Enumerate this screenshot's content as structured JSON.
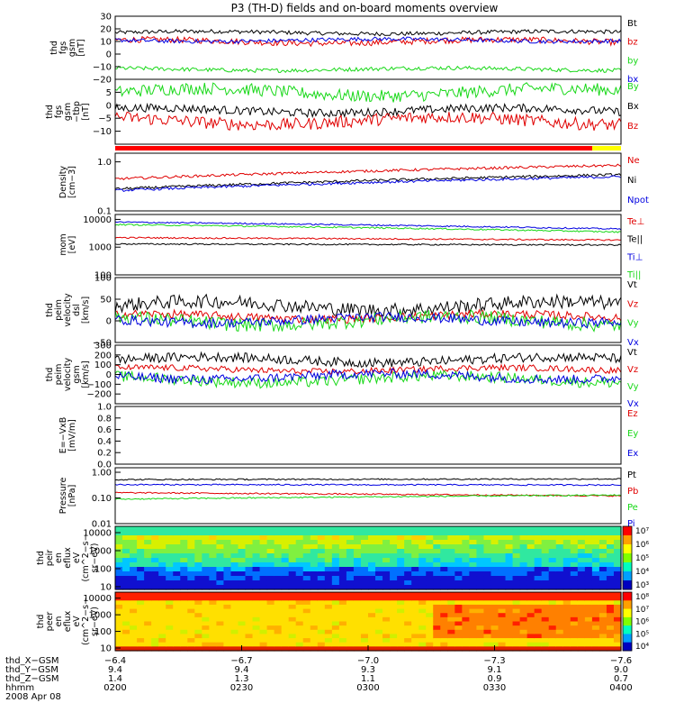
{
  "title": "P3 (TH-D) fields and on-board moments overview",
  "colors": {
    "black": "#000000",
    "red": "#e00000",
    "green": "#18d818",
    "blue": "#0000e0",
    "yellow": "#ffff00",
    "orange_red": "#ff2000"
  },
  "chart_data": [
    {
      "type": "line",
      "id": "fgs_gsm",
      "ylabel": [
        "thd",
        "fgs",
        "gsm",
        "[nT]"
      ],
      "ylim": [
        -20,
        30
      ],
      "yticks": [
        "30",
        "20",
        "10",
        "0",
        "−10",
        "−20"
      ],
      "ytick_values": [
        30,
        20,
        10,
        0,
        -10,
        -20
      ],
      "series": [
        {
          "name": "Bt",
          "color": "#000000",
          "level": 17,
          "amp": 2
        },
        {
          "name": "bz",
          "color": "#e00000",
          "level": 10,
          "amp": 3
        },
        {
          "name": "by",
          "color": "#18d818",
          "level": -12,
          "amp": 2
        },
        {
          "name": "bx",
          "color": "#0000e0",
          "level": 11,
          "amp": 2
        }
      ]
    },
    {
      "type": "line",
      "id": "fgs_gsm_tbp",
      "ylabel": [
        "thd",
        "fgs",
        "gsm",
        "−tbp",
        "[nT]"
      ],
      "ylim": [
        -15,
        10
      ],
      "yticks": [
        "5",
        "0",
        "−5",
        "−10"
      ],
      "ytick_values": [
        5,
        0,
        -5,
        -10
      ],
      "series": [
        {
          "name": "By",
          "color": "#18d818",
          "level": 5,
          "amp": 3
        },
        {
          "name": "Bx",
          "color": "#000000",
          "level": -2,
          "amp": 2
        },
        {
          "name": "Bz",
          "color": "#e00000",
          "level": -6,
          "amp": 3
        }
      ]
    },
    {
      "type": "line",
      "id": "density",
      "log": true,
      "ylabel": [
        "Density",
        "[cm−3]"
      ],
      "ylim": [
        0.1,
        1.5
      ],
      "yticks": [
        "1.0",
        "0.1"
      ],
      "ytick_values": [
        1.0,
        0.1
      ],
      "series": [
        {
          "name": "Ne",
          "color": "#e00000",
          "start": 0.45,
          "end": 0.85
        },
        {
          "name": "Ni",
          "color": "#000000",
          "start": 0.28,
          "end": 0.55
        },
        {
          "name": "Npot",
          "color": "#0000e0",
          "start": 0.26,
          "end": 0.5
        }
      ]
    },
    {
      "type": "line",
      "id": "temperature",
      "log": true,
      "ylabel": [
        "mom",
        "[eV]"
      ],
      "ylim": [
        100,
        15000
      ],
      "yticks": [
        "10000",
        "1000",
        "100"
      ],
      "ytick_values": [
        10000,
        1000,
        100
      ],
      "series": [
        {
          "name": "Te⊥",
          "color": "#e00000",
          "start": 2200,
          "end": 1800
        },
        {
          "name": "Te||",
          "color": "#000000",
          "start": 1300,
          "end": 1200
        },
        {
          "name": "Ti⊥",
          "color": "#0000e0",
          "start": 8000,
          "end": 4500
        },
        {
          "name": "Ti||",
          "color": "#18d818",
          "start": 6500,
          "end": 3500
        }
      ]
    },
    {
      "type": "line",
      "id": "peim_velocity_dsl",
      "ylabel": [
        "thd",
        "peim",
        "velocity",
        "dsl",
        "[km/s]"
      ],
      "ylim": [
        -50,
        100
      ],
      "yticks": [
        "100",
        "50",
        "0",
        "−50"
      ],
      "ytick_values": [
        100,
        50,
        0,
        -50
      ],
      "series": [
        {
          "name": "Vt",
          "color": "#000000",
          "level": 35,
          "amp": 20
        },
        {
          "name": "Vz",
          "color": "#e00000",
          "level": 10,
          "amp": 12
        },
        {
          "name": "Vy",
          "color": "#18d818",
          "level": 0,
          "amp": 20
        },
        {
          "name": "Vx",
          "color": "#0000e0",
          "level": 2,
          "amp": 14
        }
      ]
    },
    {
      "type": "line",
      "id": "peim_velocity_gsm",
      "ylabel": [
        "thd",
        "peim",
        "velocity",
        "gsm",
        "[km/s]"
      ],
      "ylim": [
        -300,
        300
      ],
      "yticks": [
        "300",
        "200",
        "100",
        "0",
        "−100",
        "−200"
      ],
      "ytick_values": [
        300,
        200,
        100,
        0,
        -100,
        -200
      ],
      "series": [
        {
          "name": "Vt",
          "color": "#000000",
          "level": 150,
          "amp": 60
        },
        {
          "name": "Vz",
          "color": "#e00000",
          "level": 50,
          "amp": 40
        },
        {
          "name": "Vy",
          "color": "#18d818",
          "level": -50,
          "amp": 70
        },
        {
          "name": "Vx",
          "color": "#0000e0",
          "level": -20,
          "amp": 60
        }
      ]
    },
    {
      "type": "line",
      "id": "efield",
      "ylabel": [
        "E=−VxB",
        "[mV/m]"
      ],
      "ylim": [
        0.0,
        1.0
      ],
      "yticks": [
        "1.0",
        "0.8",
        "0.6",
        "0.4",
        "0.2",
        "0.0"
      ],
      "ytick_values": [
        1.0,
        0.8,
        0.6,
        0.4,
        0.2,
        0.0
      ],
      "series": [
        {
          "name": "Ez",
          "color": "#e00000"
        },
        {
          "name": "Ey",
          "color": "#18d818"
        },
        {
          "name": "Ex",
          "color": "#0000e0"
        }
      ]
    },
    {
      "type": "line",
      "id": "pressure",
      "log": true,
      "ylabel": [
        "Pressure",
        "[nPa]"
      ],
      "ylim": [
        0.01,
        1.5
      ],
      "yticks": [
        "1.00",
        "0.10",
        "0.01"
      ],
      "ytick_values": [
        1.0,
        0.1,
        0.01
      ],
      "series": [
        {
          "name": "Pt",
          "color": "#000000",
          "start": 0.52,
          "end": 0.55
        },
        {
          "name": "Pb",
          "color": "#e00000",
          "start": 0.16,
          "end": 0.12
        },
        {
          "name": "Pe",
          "color": "#18d818",
          "start": 0.09,
          "end": 0.13
        },
        {
          "name": "Pi",
          "color": "#0000e0",
          "start": 0.33,
          "end": 0.32
        }
      ]
    },
    {
      "type": "heatmap",
      "id": "peir_eflux",
      "ylabel": [
        "thd",
        "peir",
        "en",
        "eflux",
        "eV",
        "(cm^2−s−",
        "sr−eV)"
      ],
      "yticks": [
        "10000",
        "1000",
        "100",
        "10"
      ],
      "ytick_values": [
        10000,
        1000,
        100,
        10
      ],
      "colorbar_ticks": [
        "10⁷",
        "10⁶",
        "10⁵",
        "10⁴",
        "10³"
      ]
    },
    {
      "type": "heatmap",
      "id": "peer_eflux",
      "ylabel": [
        "thd",
        "peer",
        "en",
        "eflux",
        "eV",
        "(cm^2−s−",
        "sr−eV)"
      ],
      "yticks": [
        "10000",
        "1000",
        "100",
        "10"
      ],
      "ytick_values": [
        10000,
        1000,
        100,
        10
      ],
      "colorbar_ticks": [
        "10⁸",
        "10⁷",
        "10⁶",
        "10⁵",
        "10⁴"
      ]
    }
  ],
  "xaxis": {
    "ticks": [
      "0200",
      "0230",
      "0300",
      "0330",
      "0400"
    ],
    "rows": [
      {
        "label": "thd_X−GSM",
        "values": [
          "−6.4",
          "−6.7",
          "−7.0",
          "−7.3",
          "−7.6"
        ]
      },
      {
        "label": "thd_Y−GSM",
        "values": [
          "9.4",
          "9.4",
          "9.3",
          "9.1",
          "9.0"
        ]
      },
      {
        "label": "thd_Z−GSM",
        "values": [
          "1.4",
          "1.3",
          "1.1",
          "0.9",
          "0.7"
        ]
      },
      {
        "label": "hhmm",
        "values": [
          "0200",
          "0230",
          "0300",
          "0330",
          "0400"
        ]
      }
    ],
    "date": "2008 Apr 08"
  }
}
